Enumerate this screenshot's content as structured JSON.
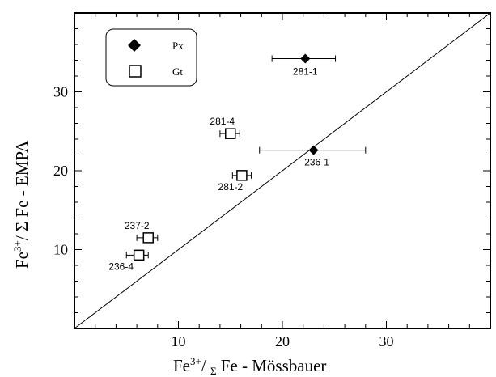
{
  "chart_data": {
    "type": "scatter",
    "xlabel": {
      "pre": "Fe",
      "sup": "3+",
      "mid": "/ ",
      "sub": "Σ",
      "post": " Fe - Mössbauer"
    },
    "ylabel": {
      "pre": "Fe",
      "sup": "3+",
      "post": "/ Σ Fe - EMPA"
    },
    "xlim": [
      0,
      40
    ],
    "ylim": [
      0,
      40
    ],
    "xticks": [
      10,
      20,
      30
    ],
    "yticks": [
      10,
      20,
      30
    ],
    "reference_line": "1:1",
    "legend": {
      "position": "top-left",
      "entries": [
        {
          "name": "Px",
          "marker": "diamond-filled"
        },
        {
          "name": "Gt",
          "marker": "square-open"
        }
      ]
    },
    "series": [
      {
        "name": "Px",
        "points": [
          {
            "label": "281-1",
            "x": 22.2,
            "y": 34.2,
            "xerr": [
              19.0,
              25.1
            ]
          },
          {
            "label": "236-1",
            "x": 23.0,
            "y": 22.6,
            "xerr": [
              17.8,
              28.0
            ]
          }
        ]
      },
      {
        "name": "Gt",
        "points": [
          {
            "label": "281-4",
            "x": 15.0,
            "y": 24.7,
            "xerr": [
              14.0,
              15.9
            ]
          },
          {
            "label": "281-2",
            "x": 16.1,
            "y": 19.4,
            "xerr": [
              15.2,
              17.0
            ]
          },
          {
            "label": "237-2",
            "x": 7.1,
            "y": 11.5,
            "xerr": [
              6.0,
              8.0
            ]
          },
          {
            "label": "236-4",
            "x": 6.2,
            "y": 9.3,
            "xerr": [
              5.0,
              7.1
            ]
          }
        ]
      }
    ]
  }
}
